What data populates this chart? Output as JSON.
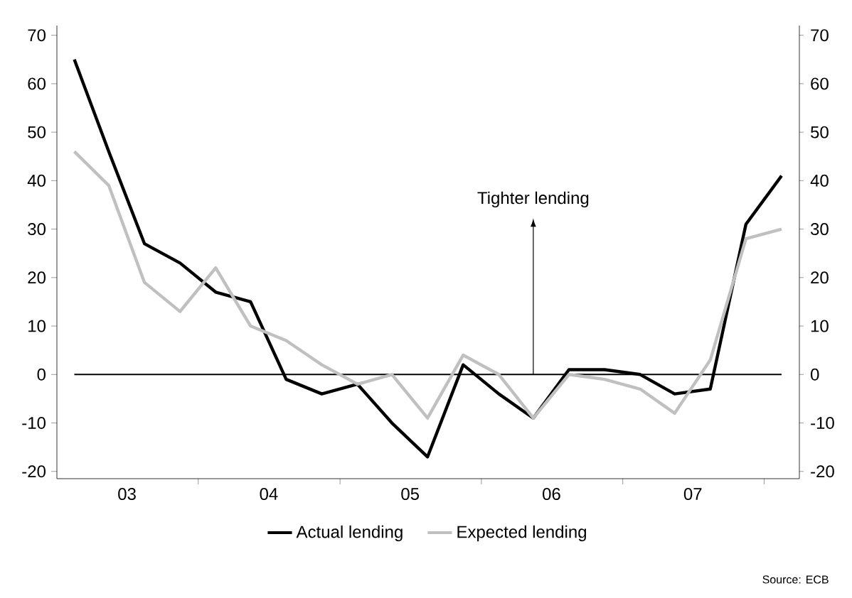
{
  "chart_data": {
    "type": "line",
    "x": [
      "2003-02-15",
      "2003-05-15",
      "2003-08-15",
      "2003-11-15",
      "2004-02-15",
      "2004-05-15",
      "2004-08-15",
      "2004-11-15",
      "2005-02-15",
      "2005-05-15",
      "2005-08-15",
      "2005-11-15",
      "2006-02-15",
      "2006-05-15",
      "2006-08-15",
      "2006-11-15",
      "2007-02-15",
      "2007-05-15",
      "2007-08-15",
      "2007-11-15",
      "2008-02-15"
    ],
    "xlim": [
      "2003-01-01",
      "2008-04-01"
    ],
    "xticks": [
      {
        "value": "2003-07-01",
        "label": "03"
      },
      {
        "value": "2004-07-01",
        "label": "04"
      },
      {
        "value": "2005-07-01",
        "label": "05"
      },
      {
        "value": "2006-07-01",
        "label": "06"
      },
      {
        "value": "2007-07-01",
        "label": "07"
      },
      {
        "value": "2004-01-01",
        "label": null
      },
      {
        "value": "2005-01-01",
        "label": null
      },
      {
        "value": "2006-01-01",
        "label": null
      },
      {
        "value": "2007-01-01",
        "label": null
      },
      {
        "value": "2008-01-01",
        "label": null
      }
    ],
    "ylim": [
      -21.5,
      72
    ],
    "yticks": [
      -20,
      -10,
      0,
      10,
      20,
      30,
      40,
      50,
      60,
      70
    ],
    "y2lim": [
      -21.5,
      72
    ],
    "y2ticks": [
      -20,
      -10,
      0,
      10,
      20,
      30,
      40,
      50,
      60,
      70
    ],
    "series": [
      {
        "name": "Actual lending",
        "color": "#000000",
        "values": [
          65,
          46,
          27,
          23,
          17,
          15,
          -1,
          -4,
          -2,
          -10,
          -17,
          2,
          -4,
          -9,
          1,
          1,
          0,
          -4,
          -3,
          31,
          41
        ]
      },
      {
        "name": "Expected lending",
        "color": "#c0c0c0",
        "values": [
          46,
          39,
          19,
          13,
          22,
          10,
          7,
          2,
          -2,
          0,
          -9,
          4,
          0,
          -9,
          0,
          -1,
          -3,
          -8,
          3,
          28,
          30
        ]
      }
    ],
    "ref_lines": [
      {
        "axis": "y",
        "value": 0,
        "color": "#000000"
      }
    ],
    "annotations": [
      {
        "text": "Tighter lending",
        "x": "2006-05-15",
        "y": 0
      },
      "Source: ECB"
    ],
    "legend": "bottom",
    "marker": "none",
    "line_style": "solid",
    "grid": false
  }
}
